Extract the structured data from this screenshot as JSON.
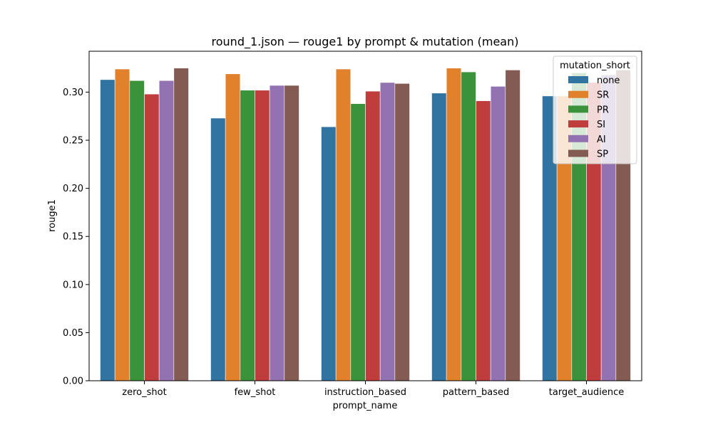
{
  "chart_data": {
    "type": "bar",
    "title": "round_1.json — rouge1 by prompt & mutation (mean)",
    "xlabel": "prompt_name",
    "ylabel": "rouge1",
    "ylim": [
      0,
      0.3425
    ],
    "yticks": [
      "0.00",
      "0.05",
      "0.10",
      "0.15",
      "0.20",
      "0.25",
      "0.30"
    ],
    "categories": [
      "zero_shot",
      "few_shot",
      "instruction_based",
      "pattern_based",
      "target_audience"
    ],
    "legend": {
      "title": "mutation_short",
      "placement": "top-right"
    },
    "grid": false,
    "series": [
      {
        "name": "none",
        "color": "#3274a1",
        "values": [
          0.313,
          0.273,
          0.264,
          0.299,
          0.296
        ]
      },
      {
        "name": "SR",
        "color": "#e1812c",
        "values": [
          0.324,
          0.319,
          0.324,
          0.325,
          0.296
        ]
      },
      {
        "name": "PR",
        "color": "#3a923a",
        "values": [
          0.312,
          0.302,
          0.288,
          0.321,
          0.32
        ]
      },
      {
        "name": "SI",
        "color": "#c03d3e",
        "values": [
          0.298,
          0.302,
          0.301,
          0.291,
          0.31
        ]
      },
      {
        "name": "AI",
        "color": "#9372b2",
        "values": [
          0.312,
          0.307,
          0.31,
          0.306,
          0.318
        ]
      },
      {
        "name": "SP",
        "color": "#845b53",
        "values": [
          0.325,
          0.307,
          0.309,
          0.323,
          0.323
        ]
      }
    ]
  }
}
